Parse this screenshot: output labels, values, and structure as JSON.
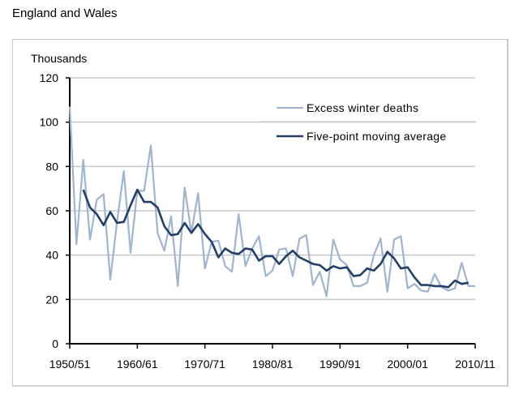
{
  "page": {
    "title": "England and Wales"
  },
  "chart_data": {
    "type": "line",
    "title": "England and Wales",
    "ylabel": "Thousands",
    "xlabel": "",
    "ylim": [
      0,
      120
    ],
    "yticks": [
      0,
      20,
      40,
      60,
      80,
      100,
      120
    ],
    "xtick_labels": [
      "1950/51",
      "1960/61",
      "1970/71",
      "1980/81",
      "1990/91",
      "2000/01",
      "2010/11"
    ],
    "grid": true,
    "legend_position": "top-right",
    "x": [
      "1950/51",
      "1951/52",
      "1952/53",
      "1953/54",
      "1954/55",
      "1955/56",
      "1956/57",
      "1957/58",
      "1958/59",
      "1959/60",
      "1960/61",
      "1961/62",
      "1962/63",
      "1963/64",
      "1964/65",
      "1965/66",
      "1966/67",
      "1967/68",
      "1968/69",
      "1969/70",
      "1970/71",
      "1971/72",
      "1972/73",
      "1973/74",
      "1974/75",
      "1975/76",
      "1976/77",
      "1977/78",
      "1978/79",
      "1979/80",
      "1980/81",
      "1981/82",
      "1982/83",
      "1983/84",
      "1984/85",
      "1985/86",
      "1986/87",
      "1987/88",
      "1988/89",
      "1989/90",
      "1990/91",
      "1991/92",
      "1992/93",
      "1993/94",
      "1994/95",
      "1995/96",
      "1996/97",
      "1997/98",
      "1998/99",
      "1999/00",
      "2000/01",
      "2001/02",
      "2002/03",
      "2003/04",
      "2004/05",
      "2005/06",
      "2006/07",
      "2007/08",
      "2008/09",
      "2009/10",
      "2010/11"
    ],
    "series": [
      {
        "name": "Excess winter deaths",
        "color": "#9fb4cf",
        "values": [
          107,
          45,
          83,
          47,
          65,
          67.5,
          29,
          55,
          78,
          41,
          69,
          69,
          89.5,
          50,
          42,
          57.5,
          26,
          70.5,
          50,
          68,
          34,
          46,
          46.5,
          35,
          32.5,
          58.5,
          35,
          43,
          48.5,
          30.5,
          33,
          42.5,
          43,
          30.5,
          47.5,
          49,
          26.5,
          32.5,
          21.5,
          47,
          38,
          35.5,
          26,
          26,
          27.5,
          40,
          47.5,
          23.5,
          47,
          48.5,
          25,
          27,
          24,
          23.5,
          31.5,
          25.5,
          24,
          25,
          36.5,
          26,
          26
        ]
      },
      {
        "name": "Five-point moving average",
        "color": "#243f66",
        "values": [
          null,
          null,
          69.5,
          61.5,
          58.5,
          53.5,
          59.5,
          54.5,
          55,
          62.5,
          69.5,
          64,
          64,
          61.5,
          53,
          49,
          49.5,
          54.5,
          50,
          54,
          49.5,
          46,
          39,
          43,
          41,
          40.5,
          43,
          42.5,
          37.5,
          39.5,
          39.5,
          36,
          39.5,
          42,
          39,
          37.5,
          36,
          35.5,
          33,
          35,
          34,
          34.5,
          30.5,
          31,
          34,
          33,
          36,
          41.5,
          38.5,
          34,
          34.5,
          30,
          26.5,
          26.5,
          26,
          26,
          25.5,
          28.5,
          27,
          27.5,
          null
        ]
      }
    ]
  }
}
